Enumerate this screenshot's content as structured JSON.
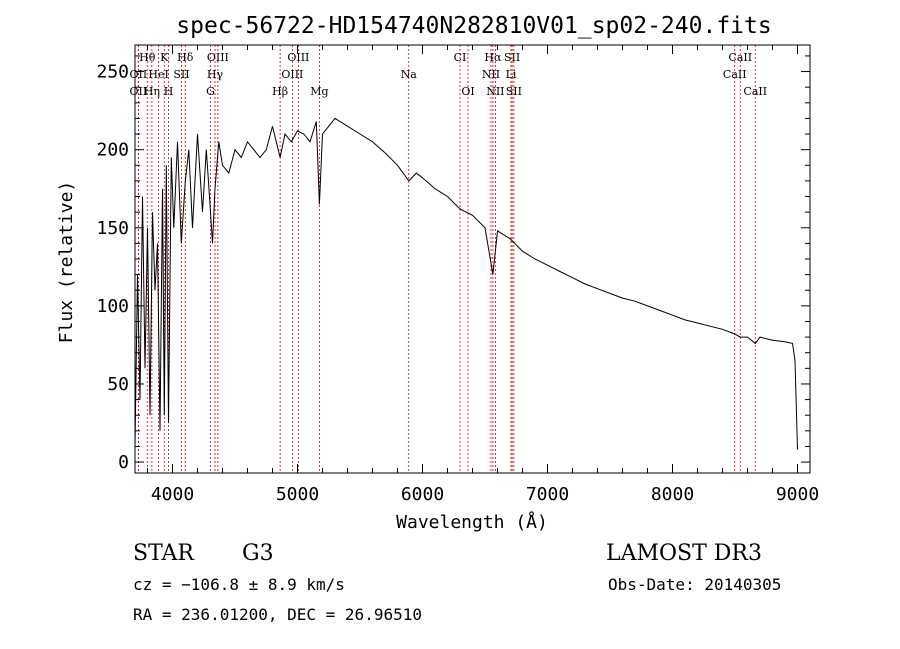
{
  "chart_data": {
    "type": "line",
    "title": "spec-56722-HD154740N282810V01_sp02-240.fits",
    "xlabel": "Wavelength (Å)",
    "ylabel": "Flux (relative)",
    "xlim": [
      3700,
      9100
    ],
    "ylim": [
      -7,
      267
    ],
    "x_ticks": [
      4000,
      5000,
      6000,
      7000,
      8000,
      9000
    ],
    "y_ticks": [
      0,
      50,
      100,
      150,
      200,
      250
    ],
    "series": [
      {
        "name": "flux",
        "x": [
          3700,
          3720,
          3740,
          3760,
          3780,
          3800,
          3820,
          3840,
          3860,
          3880,
          3900,
          3920,
          3934,
          3950,
          3968,
          3990,
          4010,
          4040,
          4070,
          4102,
          4130,
          4160,
          4200,
          4240,
          4270,
          4300,
          4320,
          4340,
          4370,
          4400,
          4450,
          4500,
          4550,
          4600,
          4650,
          4700,
          4750,
          4800,
          4861,
          4900,
          4950,
          5000,
          5050,
          5100,
          5150,
          5175,
          5200,
          5300,
          5400,
          5500,
          5600,
          5700,
          5800,
          5890,
          5950,
          6000,
          6100,
          6200,
          6300,
          6400,
          6500,
          6563,
          6600,
          6700,
          6800,
          6900,
          7000,
          7100,
          7200,
          7300,
          7400,
          7500,
          7600,
          7700,
          7800,
          7900,
          8000,
          8100,
          8200,
          8300,
          8400,
          8498,
          8542,
          8600,
          8662,
          8700,
          8800,
          8900,
          8960,
          8980,
          9000
        ],
        "y": [
          10,
          120,
          40,
          170,
          60,
          150,
          30,
          160,
          110,
          140,
          20,
          175,
          30,
          190,
          25,
          195,
          150,
          205,
          140,
          180,
          200,
          150,
          210,
          160,
          200,
          165,
          140,
          175,
          205,
          190,
          185,
          200,
          195,
          205,
          200,
          195,
          200,
          215,
          195,
          210,
          205,
          212,
          210,
          205,
          218,
          165,
          210,
          220,
          215,
          210,
          205,
          198,
          190,
          180,
          185,
          182,
          175,
          170,
          162,
          158,
          150,
          120,
          148,
          143,
          135,
          130,
          126,
          122,
          118,
          114,
          111,
          108,
          105,
          103,
          100,
          97,
          94,
          91,
          89,
          87,
          85,
          82,
          80,
          80,
          76,
          80,
          78,
          77,
          76,
          65,
          8
        ]
      }
    ],
    "lines": [
      {
        "label": "Hθ",
        "x": 3798,
        "row": 1
      },
      {
        "label": "K",
        "x": 3934,
        "row": 1
      },
      {
        "label": "Hδ",
        "x": 4102,
        "row": 1
      },
      {
        "label": "OIII",
        "x": 4363,
        "row": 1
      },
      {
        "label": "OIII",
        "x": 5007,
        "row": 1
      },
      {
        "label": "CI",
        "x": 6300,
        "row": 1
      },
      {
        "label": "Hα",
        "x": 6563,
        "row": 1
      },
      {
        "label": "SII",
        "x": 6717,
        "row": 1
      },
      {
        "label": "CaII",
        "x": 8542,
        "row": 1
      },
      {
        "label": "OII",
        "x": 3727,
        "row": 2
      },
      {
        "label": "HeI",
        "x": 3889,
        "row": 2
      },
      {
        "label": "SII",
        "x": 4072,
        "row": 2
      },
      {
        "label": "Hγ",
        "x": 4340,
        "row": 2
      },
      {
        "label": "OIII",
        "x": 4959,
        "row": 2
      },
      {
        "label": "Na",
        "x": 5890,
        "row": 2
      },
      {
        "label": "NII",
        "x": 6548,
        "row": 2
      },
      {
        "label": "Li",
        "x": 6708,
        "row": 2
      },
      {
        "label": "CaII",
        "x": 8498,
        "row": 2
      },
      {
        "label": "OII",
        "x": 3727,
        "row": 3
      },
      {
        "label": "Hη",
        "x": 3835,
        "row": 3
      },
      {
        "label": "H",
        "x": 3968,
        "row": 3
      },
      {
        "label": "G",
        "x": 4304,
        "row": 3
      },
      {
        "label": "Hβ",
        "x": 4861,
        "row": 3
      },
      {
        "label": "Mg",
        "x": 5175,
        "row": 3
      },
      {
        "label": "OI",
        "x": 6364,
        "row": 3
      },
      {
        "label": "NII",
        "x": 6583,
        "row": 3
      },
      {
        "label": "SII",
        "x": 6731,
        "row": 3
      },
      {
        "label": "CaII",
        "x": 8662,
        "row": 3
      }
    ]
  },
  "info": {
    "object_class": "STAR",
    "subclass": "G3",
    "survey": "LAMOST DR3",
    "redshift": "cz = −106.8 ± 8.9 km/s",
    "obs_date": "Obs-Date: 20140305",
    "coords": "RA = 236.01200, DEC =  26.96510"
  },
  "colors": {
    "spectrum": "#000000",
    "line_marker": "#cc0000",
    "axis": "#000000"
  }
}
